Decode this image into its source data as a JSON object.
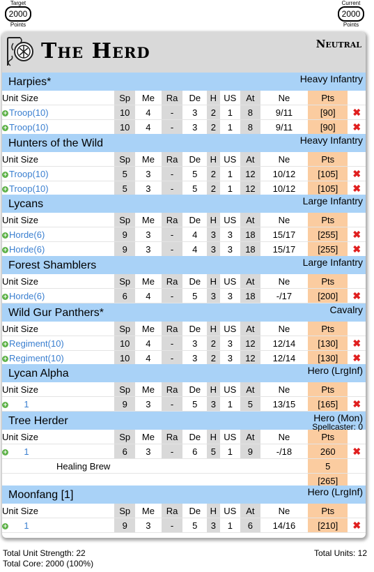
{
  "points": {
    "target": {
      "top": "Target",
      "value": "2000",
      "bottom": "Points"
    },
    "current": {
      "top": "Current",
      "value": "2000",
      "bottom": "Points"
    }
  },
  "army": {
    "title": "The Herd",
    "alignment": "Neutral"
  },
  "columns": {
    "size": "Unit Size",
    "sp": "Sp",
    "me": "Me",
    "ra": "Ra",
    "de": "De",
    "h": "H",
    "us": "US",
    "at": "At",
    "ne": "Ne",
    "pts": "Pts"
  },
  "icons": {
    "add": "plus-icon",
    "remove": "close-icon",
    "logo": "herd-emblem-icon"
  },
  "colors": {
    "unit_header": "#a9d2f7",
    "points_column": "#fbcca0",
    "stat_shade": "#d9d9d9",
    "remove": "#e01f1f",
    "add": "#5fb24a",
    "link": "#3a7fd0"
  },
  "units": [
    {
      "name": "Harpies*",
      "type": "Heavy Infantry",
      "rows": [
        {
          "size": "Troop(10)",
          "sp": "10",
          "me": "4",
          "ra": "-",
          "de": "3",
          "h": "2",
          "us": "1",
          "at": "8",
          "ne": "9/11",
          "pts": "[90]"
        },
        {
          "size": "Troop(10)",
          "sp": "10",
          "me": "4",
          "ra": "-",
          "de": "3",
          "h": "2",
          "us": "1",
          "at": "8",
          "ne": "9/11",
          "pts": "[90]"
        }
      ]
    },
    {
      "name": "Hunters of the Wild",
      "type": "Heavy Infantry",
      "rows": [
        {
          "size": "Troop(10)",
          "sp": "5",
          "me": "3",
          "ra": "-",
          "de": "5",
          "h": "2",
          "us": "1",
          "at": "12",
          "ne": "10/12",
          "pts": "[105]"
        },
        {
          "size": "Troop(10)",
          "sp": "5",
          "me": "3",
          "ra": "-",
          "de": "5",
          "h": "2",
          "us": "1",
          "at": "12",
          "ne": "10/12",
          "pts": "[105]"
        }
      ]
    },
    {
      "name": "Lycans",
      "type": "Large Infantry",
      "rows": [
        {
          "size": "Horde(6)",
          "sp": "9",
          "me": "3",
          "ra": "-",
          "de": "4",
          "h": "3",
          "us": "3",
          "at": "18",
          "ne": "15/17",
          "pts": "[255]"
        },
        {
          "size": "Horde(6)",
          "sp": "9",
          "me": "3",
          "ra": "-",
          "de": "4",
          "h": "3",
          "us": "3",
          "at": "18",
          "ne": "15/17",
          "pts": "[255]"
        }
      ]
    },
    {
      "name": "Forest Shamblers",
      "type": "Large Infantry",
      "rows": [
        {
          "size": "Horde(6)",
          "sp": "6",
          "me": "4",
          "ra": "-",
          "de": "5",
          "h": "3",
          "us": "3",
          "at": "18",
          "ne": "-/17",
          "pts": "[200]"
        }
      ]
    },
    {
      "name": "Wild Gur Panthers*",
      "type": "Cavalry",
      "rows": [
        {
          "size": "Regiment(10)",
          "sp": "10",
          "me": "4",
          "ra": "-",
          "de": "3",
          "h": "2",
          "us": "3",
          "at": "12",
          "ne": "12/14",
          "pts": "[130]"
        },
        {
          "size": "Regiment(10)",
          "sp": "10",
          "me": "4",
          "ra": "-",
          "de": "3",
          "h": "2",
          "us": "3",
          "at": "12",
          "ne": "12/14",
          "pts": "[130]"
        }
      ]
    },
    {
      "name": "Lycan Alpha",
      "type": "Hero (LrgInf)",
      "rows": [
        {
          "size": "1",
          "sp": "9",
          "me": "3",
          "ra": "-",
          "de": "5",
          "h": "3",
          "us": "1",
          "at": "5",
          "ne": "13/15",
          "pts": "[165]"
        }
      ]
    },
    {
      "name": "Tree Herder",
      "type": "Hero (Mon)",
      "subtype": "Spellcaster: 0",
      "rows": [
        {
          "size": "1",
          "sp": "6",
          "me": "3",
          "ra": "-",
          "de": "6",
          "h": "5",
          "us": "1",
          "at": "9",
          "ne": "-/18",
          "pts": "260"
        }
      ],
      "options": [
        {
          "name": "Healing Brew",
          "pts": "5"
        }
      ],
      "total": "[265]"
    },
    {
      "name": "Moonfang [1]",
      "type": "Hero (LrgInf)",
      "rows": [
        {
          "size": "1",
          "sp": "9",
          "me": "3",
          "ra": "-",
          "de": "5",
          "h": "3",
          "us": "1",
          "at": "6",
          "ne": "14/16",
          "pts": "[210]"
        }
      ]
    }
  ],
  "footer": {
    "unit_strength": "Total Unit Strength: 22",
    "core": "Total Core: 2000 (100%)",
    "units": "Total Units: 12"
  }
}
